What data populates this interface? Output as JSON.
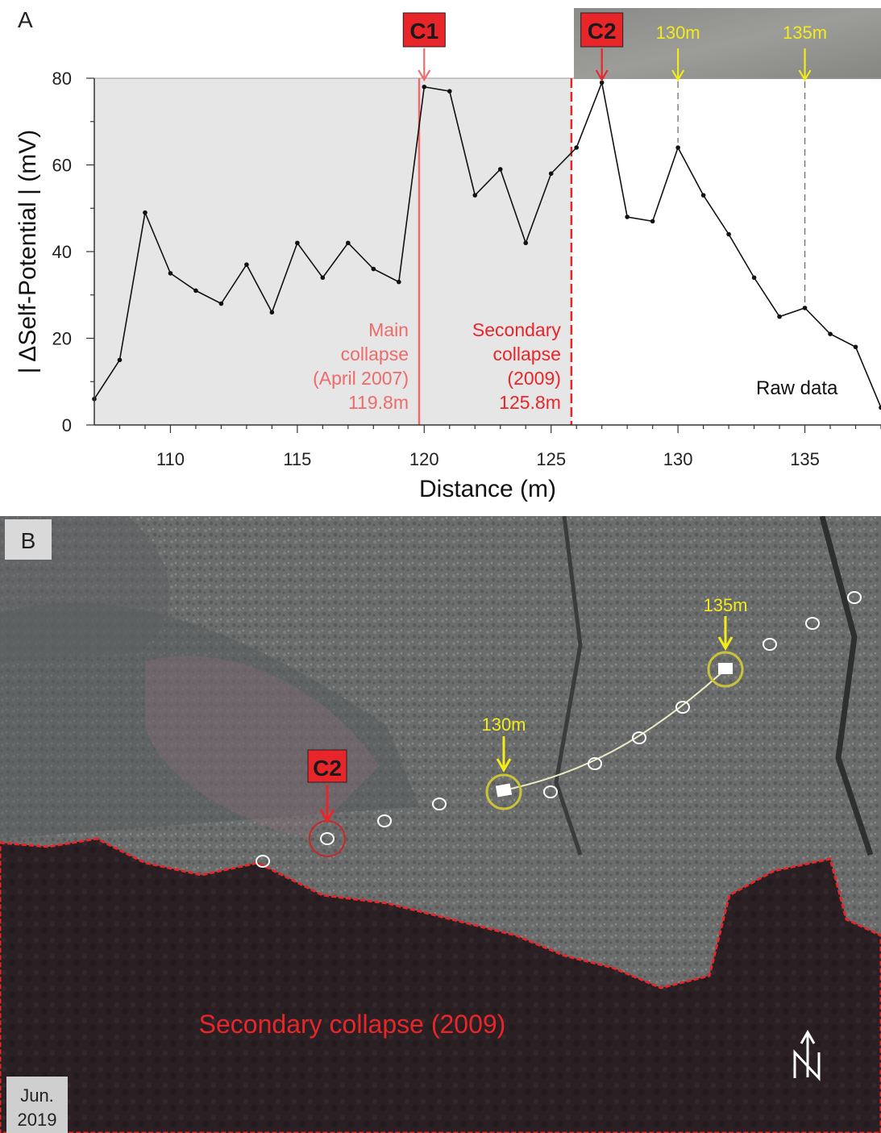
{
  "panelA": {
    "label": "A",
    "raw_label": "Raw data",
    "markers": [
      {
        "label": "C1",
        "x": 120,
        "color": "#e8262a"
      },
      {
        "label": "C2",
        "x": 127,
        "color": "#e8262a"
      },
      {
        "label": "130m",
        "x": 130,
        "color": "#f2ec1a"
      },
      {
        "label": "135m",
        "x": 135,
        "color": "#f2ec1a"
      }
    ],
    "collapse_lines": [
      {
        "x": 119.8,
        "style": "solid",
        "color": "#ef6a6a",
        "lines": [
          "Main",
          "collapse",
          "(April 2007)",
          "119.8m"
        ]
      },
      {
        "x": 125.8,
        "style": "dashed",
        "color": "#e8262a",
        "lines": [
          "Secondary",
          "collapse",
          "(2009)",
          "125.8m"
        ]
      }
    ]
  },
  "panelB": {
    "label": "B",
    "marker_C2": "C2",
    "marker_130": "130m",
    "marker_135": "135m",
    "collapse_label": "Secondary collapse (2009)",
    "date_line1": "Jun.",
    "date_line2": "2019",
    "north": "N",
    "colors": {
      "collapse_red": "#e8262a",
      "yellow": "#f2ec1a"
    }
  },
  "chart_data": {
    "type": "line",
    "xlabel": "Distance (m)",
    "ylabel": "| ΔSelf-Potential | (mV)",
    "xlim": [
      107,
      138
    ],
    "ylim": [
      0,
      80
    ],
    "xticks": [
      110,
      115,
      120,
      125,
      130,
      135
    ],
    "yticks": [
      0,
      20,
      40,
      60,
      80
    ],
    "shaded_range": [
      107,
      125.8
    ],
    "x": [
      107,
      108,
      109,
      110,
      111,
      112,
      113,
      114,
      115,
      116,
      117,
      118,
      119,
      120,
      121,
      122,
      123,
      124,
      125,
      126,
      127,
      128,
      129,
      130,
      131,
      132,
      133,
      134,
      135,
      136,
      137,
      138
    ],
    "y": [
      6,
      15,
      49,
      35,
      31,
      28,
      37,
      26,
      42,
      34,
      42,
      36,
      33,
      78,
      77,
      53,
      59,
      42,
      58,
      64,
      79,
      48,
      47,
      64,
      53,
      44,
      34,
      25,
      27,
      21,
      18,
      4
    ]
  }
}
